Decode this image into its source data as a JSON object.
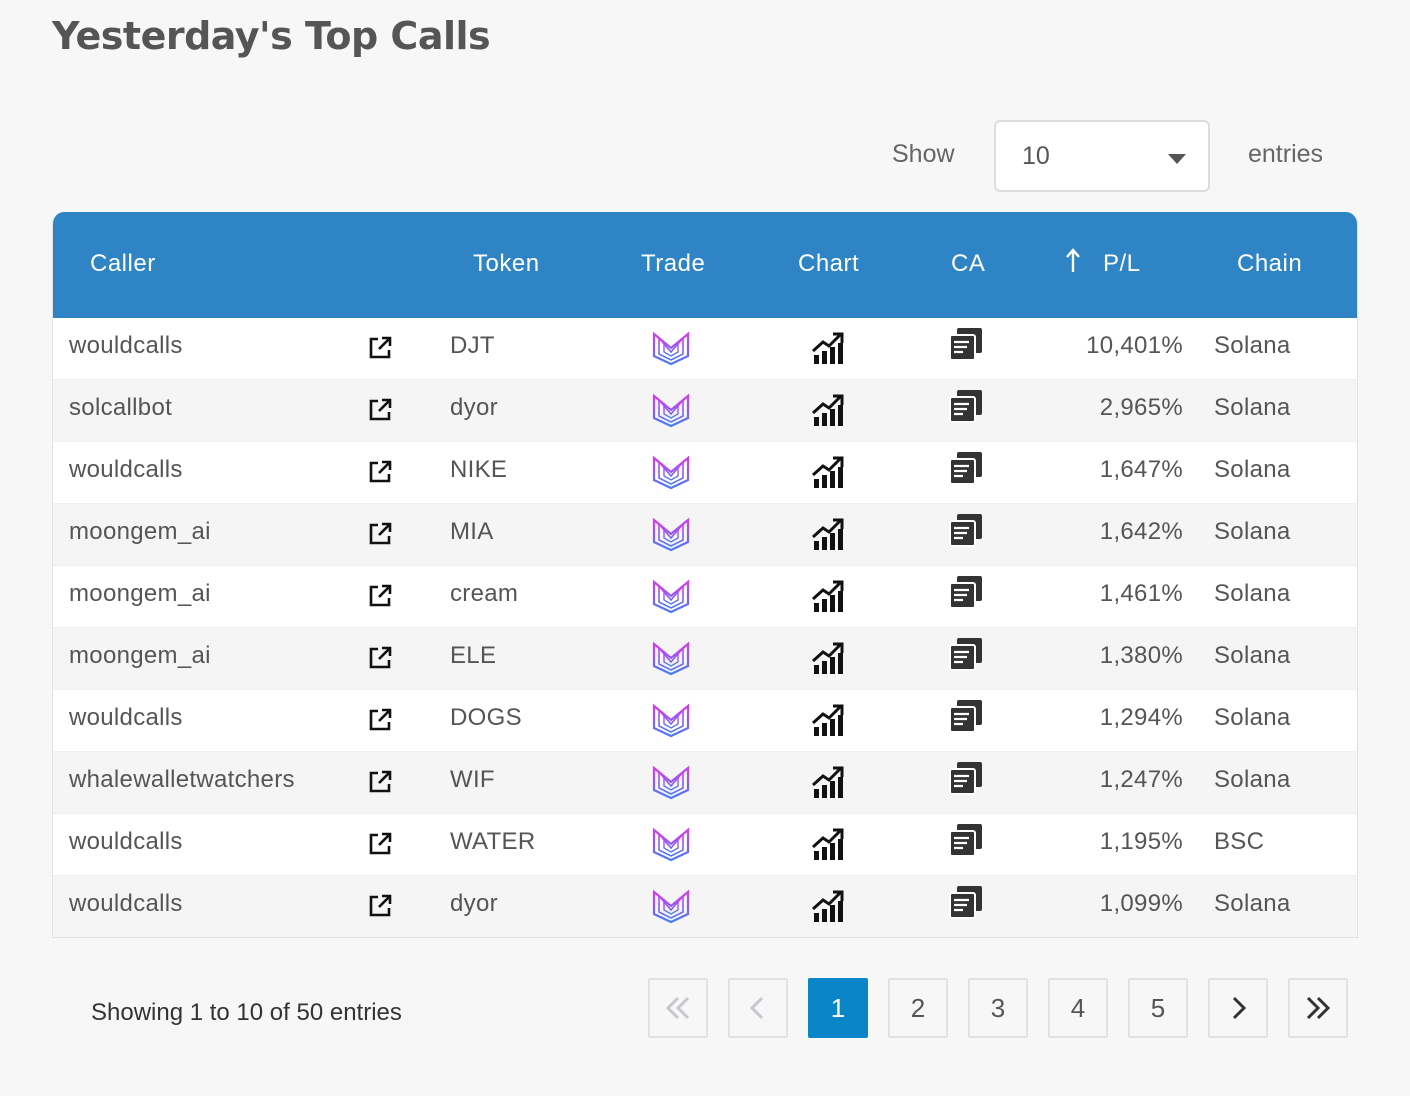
{
  "page": {
    "title": "Yesterday's Top Calls"
  },
  "length": {
    "show_label": "Show",
    "value": "10",
    "entries_label": "entries"
  },
  "table": {
    "headers": {
      "caller": "Caller",
      "token": "Token",
      "trade": "Trade",
      "chart": "Chart",
      "ca": "CA",
      "pl": "P/L",
      "chain": "Chain"
    },
    "sort_icon": "arrow-up-icon",
    "rows": [
      {
        "caller": "wouldcalls",
        "token": "DJT",
        "pl": "10,401%",
        "chain": "Solana"
      },
      {
        "caller": "solcallbot",
        "token": "dyor",
        "pl": "2,965%",
        "chain": "Solana"
      },
      {
        "caller": "wouldcalls",
        "token": "NIKE",
        "pl": "1,647%",
        "chain": "Solana"
      },
      {
        "caller": "moongem_ai",
        "token": "MIA",
        "pl": "1,642%",
        "chain": "Solana"
      },
      {
        "caller": "moongem_ai",
        "token": "cream",
        "pl": "1,461%",
        "chain": "Solana"
      },
      {
        "caller": "moongem_ai",
        "token": "ELE",
        "pl": "1,380%",
        "chain": "Solana"
      },
      {
        "caller": "wouldcalls",
        "token": "DOGS",
        "pl": "1,294%",
        "chain": "Solana"
      },
      {
        "caller": "whalewalletwatchers",
        "token": "WIF",
        "pl": "1,247%",
        "chain": "Solana"
      },
      {
        "caller": "wouldcalls",
        "token": "WATER",
        "pl": "1,195%",
        "chain": "BSC"
      },
      {
        "caller": "wouldcalls",
        "token": "dyor",
        "pl": "1,099%",
        "chain": "Solana"
      }
    ]
  },
  "pagination": {
    "info": "Showing 1 to 10 of 50 entries",
    "pages": [
      "1",
      "2",
      "3",
      "4",
      "5"
    ],
    "current": "1"
  },
  "colors": {
    "header_bg": "#2e84c4",
    "active_page": "#0a85c8",
    "trade_icon_gradient": [
      "#d23cf2",
      "#4a7cf2"
    ]
  },
  "icons": {
    "external": "external-link-icon",
    "trade": "trade-logo-icon",
    "chart": "chart-icon",
    "ca": "copy-icon"
  }
}
